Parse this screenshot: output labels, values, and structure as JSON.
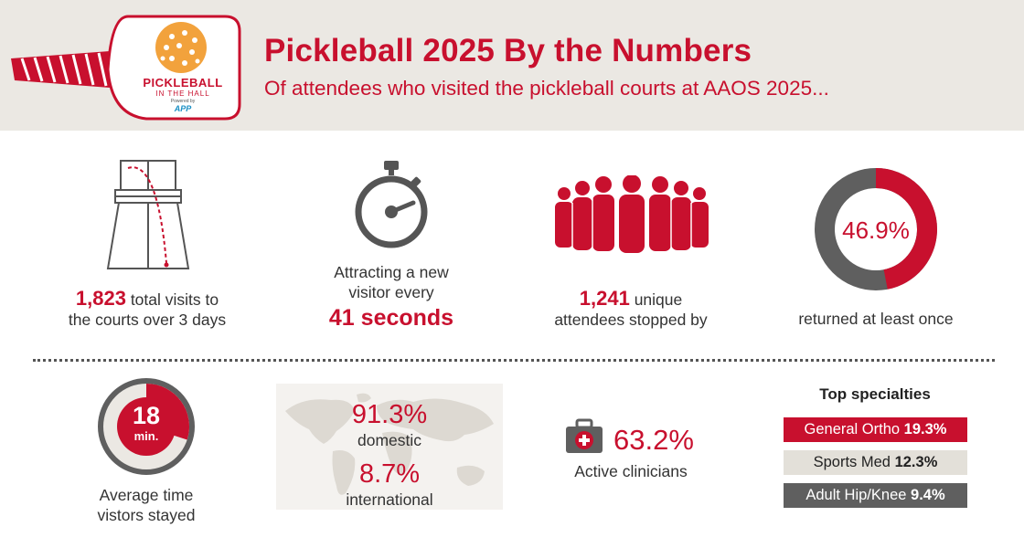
{
  "header": {
    "title": "Pickleball 2025 By the Numbers",
    "subtitle": "Of attendees who visited the pickleball courts at AAOS 2025...",
    "logo_text_line1": "PICKLEBALL",
    "logo_text_line2": "IN THE HALL",
    "logo_powered": "Powered by",
    "logo_app": "APP"
  },
  "colors": {
    "brand_red": "#c8102e",
    "dark_gray": "#5f5f5f",
    "light_panel": "#ebe8e3"
  },
  "stats": {
    "visits": {
      "number": "1,823",
      "text1": "total visits to",
      "text2": "the courts over 3 days"
    },
    "rate": {
      "line1": "Attracting a new",
      "line2": "visitor every",
      "highlight": "41 seconds"
    },
    "unique": {
      "number": "1,241",
      "text1": "unique",
      "text2": "attendees stopped by"
    },
    "returned": {
      "percent_label": "46.9%",
      "percent_value": 46.9,
      "text": "returned at least once"
    },
    "time": {
      "minutes": "18",
      "unit": "min.",
      "line1": "Average time",
      "line2": "vistors stayed",
      "minutes_value": 18
    },
    "geo": {
      "domestic_pct": "91.3%",
      "domestic_label": "domestic",
      "intl_pct": "8.7%",
      "intl_label": "international"
    },
    "clinicians": {
      "pct": "63.2%",
      "label": "Active clinicians"
    }
  },
  "specialties": {
    "heading": "Top specialties",
    "items": [
      {
        "name": "General Ortho",
        "pct": "19.3%"
      },
      {
        "name": "Sports Med",
        "pct": "12.3%"
      },
      {
        "name": "Adult Hip/Knee",
        "pct": "9.4%"
      }
    ]
  }
}
